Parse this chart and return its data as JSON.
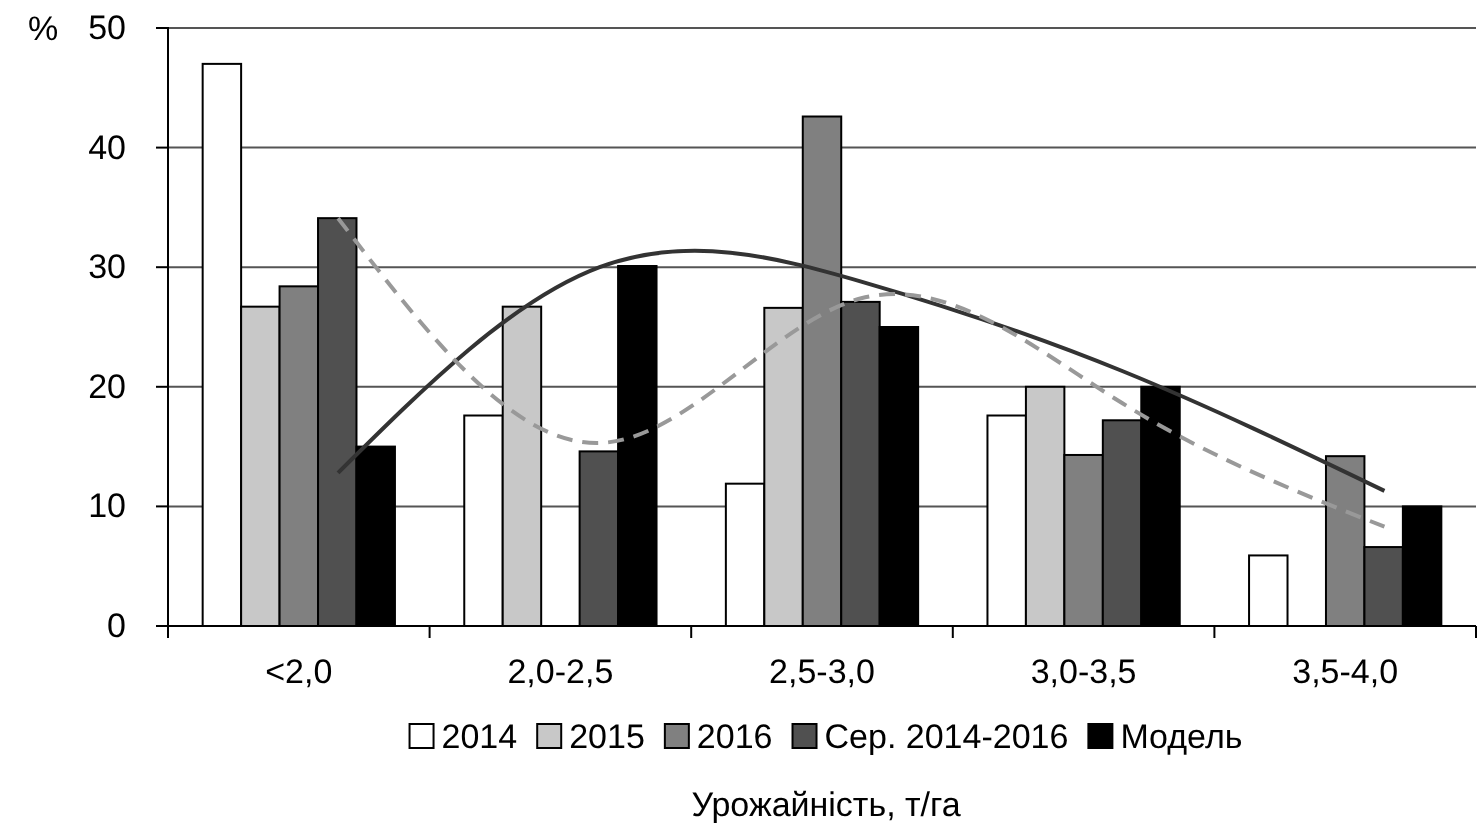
{
  "chart_data": {
    "type": "bar",
    "xlabel": "Урожайність, т/га",
    "ylabel": "%",
    "categories": [
      "<2,0",
      "2,0-2,5",
      "2,5-3,0",
      "3,0-3,5",
      "3,5-4,0"
    ],
    "ylim": [
      0,
      50
    ],
    "yticks": [
      0,
      10,
      20,
      30,
      40,
      50
    ],
    "grid": "y",
    "legend": "bottom",
    "series": [
      {
        "name": "2014",
        "color": "#ffffff",
        "values": [
          47,
          17.6,
          11.9,
          17.6,
          5.9
        ]
      },
      {
        "name": "2015",
        "color": "#c8c8c8",
        "values": [
          26.7,
          26.7,
          26.6,
          20,
          0
        ]
      },
      {
        "name": "2016",
        "color": "#808080",
        "values": [
          28.4,
          0,
          42.6,
          14.3,
          14.2
        ]
      },
      {
        "name": "Сер. 2014-2016",
        "color": "#505050",
        "values": [
          34.1,
          14.6,
          27.1,
          17.2,
          6.6
        ]
      },
      {
        "name": "Модель",
        "color": "#000000",
        "values": [
          15,
          30.1,
          25,
          20,
          10
        ]
      },
      {
        "type": "line",
        "color": "#333333",
        "line_style": "solid",
        "values": [
          12.8,
          30,
          28.8,
          21.3,
          11.3
        ]
      },
      {
        "type": "line",
        "color": "#999999",
        "line_style": "dashed",
        "values": [
          34.1,
          15.3,
          27.4,
          18.6,
          8.3
        ]
      }
    ]
  }
}
